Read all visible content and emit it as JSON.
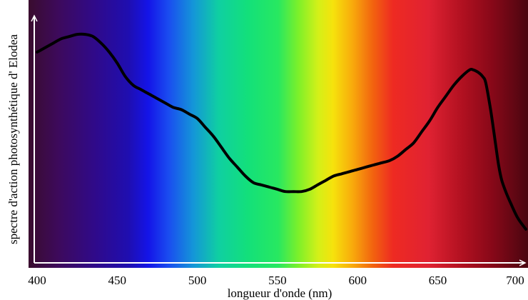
{
  "chart_data": {
    "type": "line",
    "title": "",
    "xlabel": "longueur d'onde (nm)",
    "ylabel": "spectre d'action photosynthétique d' Elodea",
    "xlim": [
      400,
      705
    ],
    "ylim": [
      0,
      1
    ],
    "x_ticks": [
      "400",
      "450",
      "500",
      "550",
      "600",
      "650",
      "700"
    ],
    "x_tick_values": [
      400,
      450,
      500,
      550,
      600,
      650,
      700
    ],
    "y_ticks_shown": false,
    "grid": false,
    "background": "visible-spectrum gradient (violet to dark red)",
    "line_color": "#000000",
    "series": [
      {
        "x": [
          400,
          405,
          410,
          415,
          420,
          425,
          430,
          435,
          440,
          445,
          450,
          455,
          460,
          465,
          470,
          475,
          480,
          485,
          490,
          495,
          500,
          505,
          510,
          515,
          520,
          525,
          530,
          535,
          540,
          545,
          550,
          555,
          560,
          565,
          570,
          575,
          580,
          585,
          590,
          595,
          600,
          605,
          610,
          615,
          620,
          625,
          630,
          635,
          640,
          645,
          650,
          655,
          660,
          665,
          670,
          672,
          675,
          678,
          680,
          683,
          686,
          688,
          690,
          693,
          696,
          700,
          705
        ],
        "values": [
          0.91,
          0.93,
          0.95,
          0.97,
          0.98,
          0.99,
          0.99,
          0.98,
          0.95,
          0.91,
          0.86,
          0.8,
          0.76,
          0.74,
          0.72,
          0.7,
          0.68,
          0.66,
          0.65,
          0.63,
          0.61,
          0.57,
          0.53,
          0.48,
          0.43,
          0.39,
          0.35,
          0.32,
          0.31,
          0.3,
          0.29,
          0.28,
          0.28,
          0.28,
          0.29,
          0.31,
          0.33,
          0.35,
          0.36,
          0.37,
          0.38,
          0.39,
          0.4,
          0.41,
          0.42,
          0.44,
          0.47,
          0.5,
          0.55,
          0.6,
          0.66,
          0.71,
          0.76,
          0.8,
          0.83,
          0.83,
          0.82,
          0.8,
          0.77,
          0.65,
          0.5,
          0.4,
          0.33,
          0.27,
          0.22,
          0.16,
          0.11
        ]
      }
    ]
  }
}
